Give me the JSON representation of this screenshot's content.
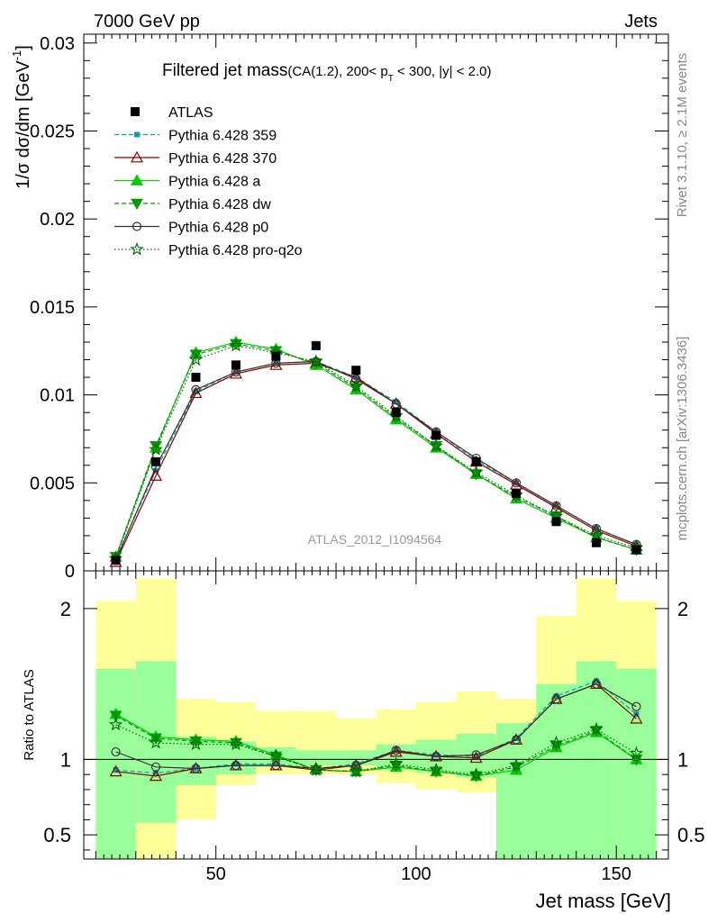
{
  "header": {
    "left": "7000 GeV pp",
    "right": "Jets"
  },
  "side_labels": {
    "rivet": "Rivet 3.1.10, ≥ 2.1M events",
    "mcplots": "mcplots.cern.ch [arXiv:1306.3436]"
  },
  "chart_data": [
    {
      "type": "scatter",
      "title_main": "Filtered jet mass",
      "title_sub": "(CA(1.2), 200< p",
      "title_sub_T": "T",
      "title_sub_end": " < 300, |y| < 2.0)",
      "ylabel": "1/σ dσ/dm [GeV",
      "ylabel_sup": "-1",
      "ylabel_end": "]",
      "watermark": "ATLAS_2012_I1094564",
      "xlim": [
        17,
        163
      ],
      "ylim": [
        0,
        0.0305
      ],
      "yticks": [
        0,
        0.005,
        0.01,
        0.015,
        0.02,
        0.025,
        0.03
      ],
      "ytick_labels": [
        "0",
        "0.005",
        "0.01",
        "0.015",
        "0.02",
        "0.025",
        "0.03"
      ],
      "x": [
        25,
        35,
        45,
        55,
        65,
        75,
        85,
        95,
        105,
        115,
        125,
        135,
        145,
        155
      ],
      "data": {
        "name": "ATLAS",
        "values": [
          0.0006,
          0.0062,
          0.011,
          0.0117,
          0.0122,
          0.0128,
          0.0114,
          0.009,
          0.0077,
          0.0062,
          0.0044,
          0.0028,
          0.0016,
          0.0012
        ]
      },
      "series": [
        {
          "name": "Pythia 6.428 359",
          "color": "#00a6a6",
          "dash": "5,3",
          "marker": "square-small",
          "values": [
            0.0007,
            0.0057,
            0.0102,
            0.0113,
            0.0118,
            0.0119,
            0.011,
            0.0096,
            0.0079,
            0.0063,
            0.005,
            0.0037,
            0.0024,
            0.0015
          ]
        },
        {
          "name": "Pythia 6.428 370",
          "color": "#8b0000",
          "dash": "",
          "marker": "triangle-open",
          "values": [
            0.0005,
            0.0054,
            0.0101,
            0.0112,
            0.0117,
            0.0118,
            0.011,
            0.0095,
            0.0078,
            0.0062,
            0.0049,
            0.0036,
            0.0023,
            0.0014
          ]
        },
        {
          "name": "Pythia 6.428 a",
          "color": "#00cc00",
          "dash": "",
          "marker": "triangle-filled",
          "values": [
            0.0008,
            0.007,
            0.0124,
            0.013,
            0.0126,
            0.0117,
            0.0103,
            0.0086,
            0.007,
            0.0055,
            0.0041,
            0.003,
            0.0019,
            0.0012
          ]
        },
        {
          "name": "Pythia 6.428 dw",
          "color": "#009900",
          "dash": "5,3",
          "marker": "triangle-down",
          "values": [
            0.0008,
            0.0071,
            0.0123,
            0.0129,
            0.0125,
            0.0118,
            0.0104,
            0.0087,
            0.0071,
            0.0055,
            0.0042,
            0.0031,
            0.0019,
            0.0012
          ]
        },
        {
          "name": "Pythia 6.428 p0",
          "color": "#333333",
          "dash": "",
          "marker": "circle-open",
          "values": [
            0.0006,
            0.0059,
            0.0103,
            0.0113,
            0.0118,
            0.0119,
            0.0109,
            0.0095,
            0.0079,
            0.0064,
            0.005,
            0.0037,
            0.0024,
            0.0015
          ]
        },
        {
          "name": "Pythia 6.428 pro-q2o",
          "color": "#006600",
          "dash": "1.5,2.5",
          "marker": "star",
          "values": [
            0.0007,
            0.0069,
            0.012,
            0.0128,
            0.0124,
            0.0119,
            0.0105,
            0.0088,
            0.0071,
            0.0056,
            0.0043,
            0.0031,
            0.002,
            0.0013
          ]
        }
      ]
    },
    {
      "type": "line",
      "ylabel": "Ratio to ATLAS",
      "xlabel": "Jet mass [GeV]",
      "xlim": [
        17,
        163
      ],
      "ylim": [
        0.34,
        2.25
      ],
      "xticks": [
        50,
        100,
        150
      ],
      "xtick_labels": [
        "50",
        "100",
        "150"
      ],
      "yticks": [
        0.5,
        1,
        2
      ],
      "ytick_labels": [
        "0.5",
        "1",
        "2"
      ],
      "bins": [
        {
          "lo": 20,
          "hi": 30,
          "yellow": [
            0.34,
            2.05
          ],
          "green": [
            0.34,
            1.6
          ]
        },
        {
          "lo": 30,
          "hi": 40,
          "yellow": [
            0.34,
            2.2
          ],
          "green": [
            0.58,
            1.65
          ]
        },
        {
          "lo": 40,
          "hi": 50,
          "yellow": [
            0.6,
            1.4
          ],
          "green": [
            0.83,
            1.15
          ]
        },
        {
          "lo": 50,
          "hi": 60,
          "yellow": [
            0.83,
            1.38
          ],
          "green": [
            0.9,
            1.12
          ]
        },
        {
          "lo": 60,
          "hi": 70,
          "yellow": [
            0.9,
            1.32
          ],
          "green": [
            0.95,
            1.08
          ]
        },
        {
          "lo": 70,
          "hi": 80,
          "yellow": [
            0.9,
            1.32
          ],
          "green": [
            0.96,
            1.06
          ]
        },
        {
          "lo": 80,
          "hi": 90,
          "yellow": [
            0.9,
            1.27
          ],
          "green": [
            0.96,
            1.06
          ]
        },
        {
          "lo": 90,
          "hi": 100,
          "yellow": [
            0.84,
            1.33
          ],
          "green": [
            0.93,
            1.1
          ]
        },
        {
          "lo": 100,
          "hi": 110,
          "yellow": [
            0.8,
            1.38
          ],
          "green": [
            0.91,
            1.13
          ]
        },
        {
          "lo": 110,
          "hi": 120,
          "yellow": [
            0.78,
            1.45
          ],
          "green": [
            0.88,
            1.17
          ]
        },
        {
          "lo": 120,
          "hi": 130,
          "yellow": [
            0.72,
            1.4
          ],
          "green": [
            0.34,
            1.24
          ]
        },
        {
          "lo": 130,
          "hi": 140,
          "yellow": [
            0.71,
            1.95
          ],
          "green": [
            0.34,
            1.5
          ]
        },
        {
          "lo": 140,
          "hi": 150,
          "yellow": [
            0.56,
            2.2
          ],
          "green": [
            0.34,
            1.65
          ]
        },
        {
          "lo": 150,
          "hi": 160,
          "yellow": [
            0.34,
            2.05
          ],
          "green": [
            0.34,
            1.6
          ]
        }
      ],
      "x": [
        25,
        35,
        45,
        55,
        65,
        75,
        85,
        95,
        105,
        115,
        125,
        135,
        145,
        155
      ],
      "series": [
        {
          "name": "Pythia 6.428 359",
          "values": [
            0.93,
            0.91,
            0.94,
            0.97,
            0.97,
            0.94,
            0.97,
            1.06,
            1.03,
            1.02,
            1.14,
            1.42,
            1.52,
            1.3
          ]
        },
        {
          "name": "Pythia 6.428 370",
          "values": [
            0.92,
            0.89,
            0.94,
            0.96,
            0.96,
            0.94,
            0.96,
            1.05,
            1.02,
            1.01,
            1.13,
            1.4,
            1.5,
            1.27
          ]
        },
        {
          "name": "Pythia 6.428 a",
          "values": [
            1.3,
            1.15,
            1.13,
            1.12,
            1.03,
            0.93,
            0.92,
            0.95,
            0.92,
            0.89,
            0.93,
            1.08,
            1.18,
            1.0
          ]
        },
        {
          "name": "Pythia 6.428 dw",
          "values": [
            1.29,
            1.14,
            1.12,
            1.11,
            1.02,
            0.93,
            0.92,
            0.96,
            0.92,
            0.89,
            0.95,
            1.09,
            1.19,
            1.0
          ]
        },
        {
          "name": "Pythia 6.428 p0",
          "values": [
            1.05,
            0.95,
            0.94,
            0.96,
            0.96,
            0.93,
            0.96,
            1.06,
            1.02,
            1.03,
            1.13,
            1.4,
            1.5,
            1.35
          ]
        },
        {
          "name": "Pythia 6.428 pro-q2o",
          "values": [
            1.23,
            1.11,
            1.1,
            1.1,
            1.02,
            0.93,
            0.92,
            0.97,
            0.93,
            0.9,
            0.96,
            1.11,
            1.2,
            1.04
          ]
        }
      ]
    }
  ]
}
